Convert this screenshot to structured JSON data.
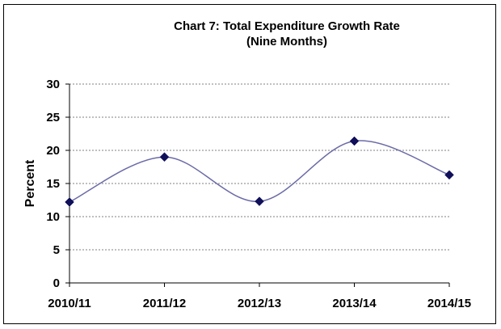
{
  "chart_data": {
    "type": "line",
    "title": [
      "Chart 7: Total Expenditure Growth Rate",
      "(Nine  Months)"
    ],
    "xlabel": "",
    "ylabel": "Percent",
    "categories": [
      "2010/11",
      "2011/12",
      "2012/13",
      "2013/14",
      "2014/15"
    ],
    "series": [
      {
        "values": [
          12.2,
          19.0,
          12.3,
          21.4,
          16.3
        ]
      }
    ],
    "ylim": [
      0,
      30
    ],
    "yticks": [
      0,
      5,
      10,
      15,
      20,
      25,
      30
    ],
    "grid": true,
    "legend": "none",
    "smooth": true,
    "colors": {
      "line": "#6b6ba8",
      "marker": "#0f0f5a",
      "grid": "#808080",
      "axis": "#000000"
    }
  }
}
